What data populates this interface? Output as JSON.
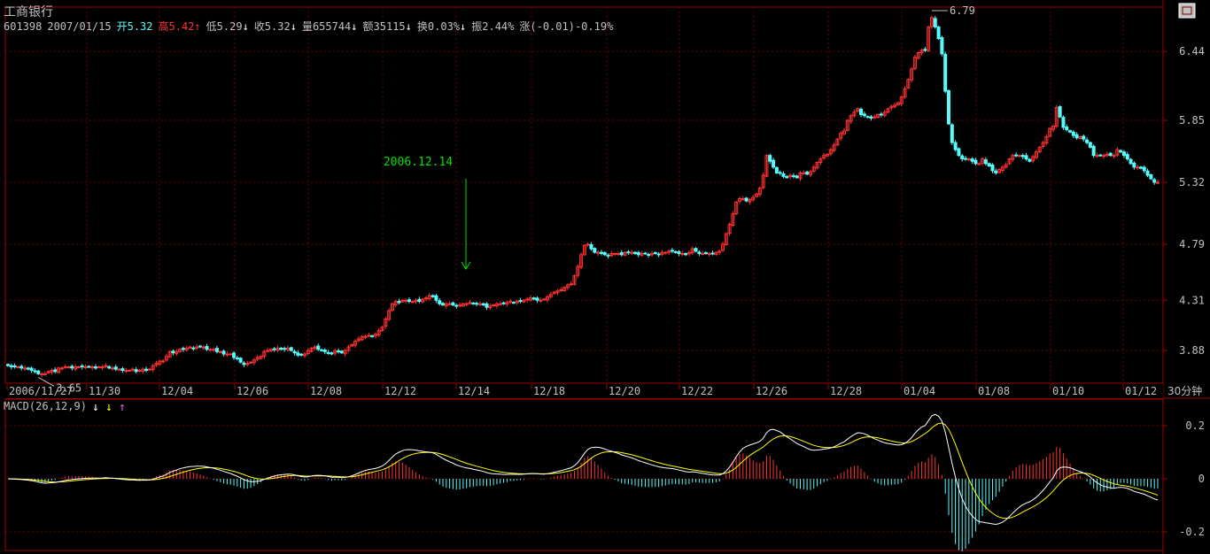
{
  "header": {
    "title": "工商银行",
    "code": "601398",
    "date": "2007/01/15",
    "open": "开5.32",
    "high": "高5.42",
    "low": "低5.29",
    "close": "收5.32",
    "volume": "量655744",
    "amount": "额35115",
    "turnover": "换0.03%",
    "amplitude": "振2.44%",
    "change": "涨(-0.01)-0.19%"
  },
  "annotation": {
    "label": "2006.12.14"
  },
  "period_label": "30分钟",
  "macd_label": "MACD(26,12,9)",
  "colors": {
    "up": "#ff3232",
    "down": "#54fcfc",
    "grid": "#6a0000",
    "frame": "#a00000",
    "text": "#c0c0c0",
    "macd_diff": "#ffffff",
    "macd_dea": "#ffff00",
    "annotation": "#00e000"
  },
  "chart_data": [
    {
      "type": "candlestick",
      "timeframe": "30分钟",
      "ylim": [
        3.6,
        6.82
      ],
      "yticks": [
        3.88,
        4.31,
        4.79,
        5.32,
        5.85,
        6.44
      ],
      "xticks": [
        "2006/11/27",
        "11/30",
        "12/04",
        "12/06",
        "12/08",
        "12/12",
        "12/14",
        "12/18",
        "12/20",
        "12/22",
        "12/26",
        "12/28",
        "01/04",
        "01/08",
        "01/10",
        "01/12"
      ],
      "price_labels": [
        {
          "text": "3.65",
          "value": 3.65
        },
        {
          "text": "6.79",
          "value": 6.79
        }
      ],
      "series": [
        {
          "values": [
            3.75,
            3.74,
            3.74,
            3.74,
            3.73,
            3.73,
            3.72,
            3.71,
            3.7,
            3.68,
            3.68,
            3.68,
            3.7,
            3.71,
            3.7,
            3.73,
            3.73,
            3.74,
            3.74,
            3.73,
            3.74,
            3.74,
            3.74,
            3.74,
            3.74,
            3.74,
            3.73,
            3.74,
            3.74,
            3.75,
            3.73,
            3.73,
            3.72,
            3.72,
            3.71,
            3.71,
            3.71,
            3.72,
            3.7,
            3.71,
            3.72,
            3.71,
            3.72,
            3.75,
            3.77,
            3.79,
            3.79,
            3.83,
            3.87,
            3.86,
            3.87,
            3.89,
            3.89,
            3.9,
            3.91,
            3.9,
            3.91,
            3.91,
            3.91,
            3.89,
            3.89,
            3.89,
            3.87,
            3.87,
            3.85,
            3.85,
            3.85,
            3.82,
            3.81,
            3.78,
            3.76,
            3.77,
            3.78,
            3.8,
            3.82,
            3.83,
            3.87,
            3.88,
            3.89,
            3.89,
            3.9,
            3.89,
            3.89,
            3.9,
            3.88,
            3.86,
            3.84,
            3.84,
            3.85,
            3.88,
            3.9,
            3.91,
            3.89,
            3.88,
            3.87,
            3.86,
            3.85,
            3.88,
            3.87,
            3.86,
            3.88,
            3.91,
            3.93,
            3.96,
            3.98,
            4.0,
            4.0,
            4.01,
            4.0,
            4.02,
            4.05,
            4.08,
            4.15,
            4.22,
            4.28,
            4.3,
            4.29,
            4.31,
            4.31,
            4.3,
            4.3,
            4.31,
            4.3,
            4.32,
            4.33,
            4.35,
            4.34,
            4.31,
            4.28,
            4.27,
            4.28,
            4.28,
            4.27,
            4.26,
            4.27,
            4.28,
            4.28,
            4.29,
            4.28,
            4.28,
            4.28,
            4.27,
            4.25,
            4.26,
            4.27,
            4.28,
            4.28,
            4.28,
            4.29,
            4.3,
            4.29,
            4.3,
            4.3,
            4.31,
            4.32,
            4.33,
            4.32,
            4.31,
            4.31,
            4.32,
            4.34,
            4.36,
            4.38,
            4.39,
            4.4,
            4.42,
            4.44,
            4.45,
            4.52,
            4.6,
            4.7,
            4.78,
            4.79,
            4.75,
            4.72,
            4.72,
            4.71,
            4.7,
            4.69,
            4.71,
            4.71,
            4.71,
            4.7,
            4.72,
            4.72,
            4.72,
            4.71,
            4.7,
            4.71,
            4.71,
            4.7,
            4.71,
            4.71,
            4.7,
            4.72,
            4.72,
            4.73,
            4.73,
            4.72,
            4.71,
            4.71,
            4.7,
            4.72,
            4.75,
            4.73,
            4.71,
            4.71,
            4.71,
            4.71,
            4.71,
            4.72,
            4.73,
            4.79,
            4.88,
            4.96,
            5.05,
            5.15,
            5.18,
            5.18,
            5.16,
            5.17,
            5.19,
            5.22,
            5.27,
            5.38,
            5.55,
            5.5,
            5.45,
            5.4,
            5.4,
            5.37,
            5.36,
            5.38,
            5.37,
            5.36,
            5.4,
            5.4,
            5.39,
            5.41,
            5.45,
            5.49,
            5.52,
            5.55,
            5.56,
            5.6,
            5.64,
            5.69,
            5.74,
            5.76,
            5.85,
            5.89,
            5.92,
            5.95,
            5.9,
            5.89,
            5.88,
            5.87,
            5.88,
            5.9,
            5.9,
            5.92,
            5.95,
            5.97,
            5.98,
            6.0,
            6.05,
            6.12,
            6.2,
            6.29,
            6.39,
            6.43,
            6.45,
            6.45,
            6.65,
            6.73,
            6.65,
            6.55,
            6.42,
            6.1,
            5.82,
            5.66,
            5.6,
            5.55,
            5.52,
            5.52,
            5.52,
            5.5,
            5.48,
            5.48,
            5.52,
            5.48,
            5.46,
            5.42,
            5.4,
            5.43,
            5.45,
            5.47,
            5.52,
            5.55,
            5.55,
            5.55,
            5.54,
            5.52,
            5.5,
            5.54,
            5.58,
            5.62,
            5.66,
            5.71,
            5.78,
            5.8,
            5.96,
            5.88,
            5.79,
            5.77,
            5.75,
            5.72,
            5.7,
            5.71,
            5.69,
            5.66,
            5.62,
            5.55,
            5.55,
            5.55,
            5.55,
            5.56,
            5.55,
            5.55,
            5.6,
            5.58,
            5.55,
            5.52,
            5.48,
            5.45,
            5.45,
            5.44,
            5.42,
            5.38,
            5.35,
            5.32,
            5.32
          ]
        }
      ]
    },
    {
      "type": "line",
      "title": "MACD(26,12,9)",
      "ylim": [
        -0.27,
        0.3
      ],
      "yticks": [
        0.2,
        0.0,
        -0.2
      ],
      "series": [
        {
          "name": "DIFF",
          "color": "#ffffff"
        },
        {
          "name": "DEA",
          "color": "#ffff00"
        },
        {
          "name": "MACD"
        }
      ]
    }
  ]
}
